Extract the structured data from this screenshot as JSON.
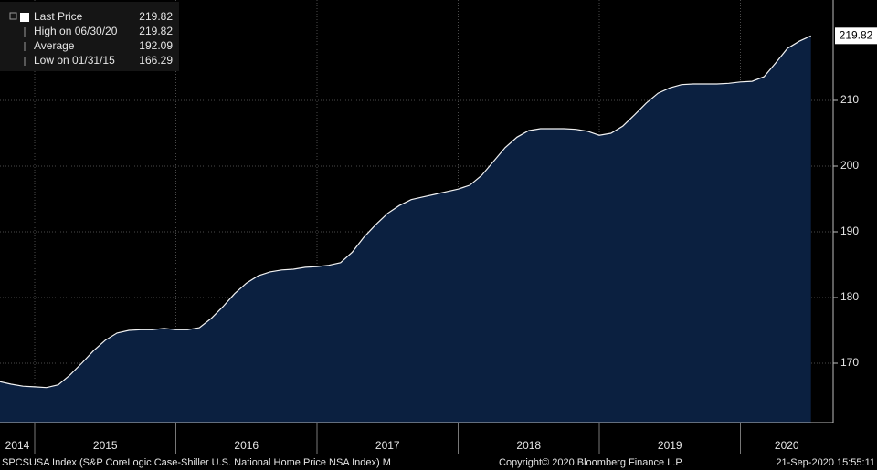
{
  "chart_data": {
    "type": "area",
    "legend": [
      {
        "label": "Last Price",
        "value": 219.82
      },
      {
        "label": "High on 06/30/20",
        "value": 219.82
      },
      {
        "label": "Average",
        "value": 192.09
      },
      {
        "label": "Low on 01/31/15",
        "value": 166.29
      }
    ],
    "last_price_tag": 219.82,
    "x": [
      2014.75,
      2014.833,
      2014.917,
      2015.0,
      2015.083,
      2015.167,
      2015.25,
      2015.333,
      2015.417,
      2015.5,
      2015.583,
      2015.667,
      2015.75,
      2015.833,
      2015.917,
      2016.0,
      2016.083,
      2016.167,
      2016.25,
      2016.333,
      2016.417,
      2016.5,
      2016.583,
      2016.667,
      2016.75,
      2016.833,
      2016.917,
      2017.0,
      2017.083,
      2017.167,
      2017.25,
      2017.333,
      2017.417,
      2017.5,
      2017.583,
      2017.667,
      2017.75,
      2017.833,
      2017.917,
      2018.0,
      2018.083,
      2018.167,
      2018.25,
      2018.333,
      2018.417,
      2018.5,
      2018.583,
      2018.667,
      2018.75,
      2018.833,
      2018.917,
      2019.0,
      2019.083,
      2019.167,
      2019.25,
      2019.333,
      2019.417,
      2019.5,
      2019.583,
      2019.667,
      2019.75,
      2019.833,
      2019.917,
      2020.0,
      2020.083,
      2020.167,
      2020.25,
      2020.333,
      2020.417,
      2020.5
    ],
    "series": [
      {
        "name": "SPCSUSA Index",
        "color": "#f2f2f2",
        "fill": "#0b2040",
        "values": [
          167.2,
          166.8,
          166.5,
          166.4,
          166.29,
          166.7,
          168.2,
          170.0,
          171.9,
          173.5,
          174.6,
          175.0,
          175.1,
          175.1,
          175.3,
          175.1,
          175.1,
          175.4,
          176.8,
          178.6,
          180.6,
          182.2,
          183.3,
          183.9,
          184.2,
          184.3,
          184.6,
          184.7,
          184.9,
          185.3,
          186.9,
          189.2,
          191.1,
          192.8,
          194.0,
          194.9,
          195.3,
          195.7,
          196.1,
          196.5,
          197.1,
          198.6,
          200.7,
          202.8,
          204.4,
          205.4,
          205.7,
          205.7,
          205.7,
          205.6,
          205.3,
          204.7,
          205.0,
          206.1,
          207.8,
          209.6,
          211.1,
          211.9,
          212.4,
          212.5,
          212.5,
          212.5,
          212.6,
          212.8,
          212.9,
          213.6,
          215.7,
          217.9,
          219.0,
          219.82
        ]
      }
    ],
    "xlim": [
      2014.754,
      2020.657
    ],
    "xticks": [
      2014,
      2015,
      2016,
      2017,
      2018,
      2019,
      2020
    ],
    "ylim": [
      160.97,
      225.28
    ],
    "yticks": [
      170,
      180,
      190,
      200,
      210
    ],
    "grid": true,
    "footer": {
      "ticker": "SPCSUSA Index (S&P CoreLogic Case-Shiller U.S. National Home Price NSA Index)  M",
      "copyright": "Copyright© 2020 Bloomberg Finance L.P.",
      "timestamp": "21-Sep-2020 15:55:11"
    }
  }
}
